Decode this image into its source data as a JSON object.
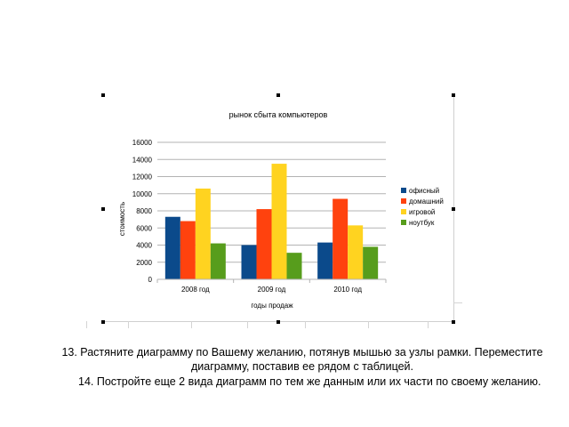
{
  "slide": {
    "instruction_13": "13. Растяните диаграмму по Вашему желанию, потянув мышью за узлы рамки. Переместите диаграмму, поставив ее рядом с таблицей.",
    "instruction_14": "14.   Постройте еще 2 вида диаграмм по тем же данным или их части по своему  желанию."
  },
  "chart_data": {
    "type": "bar",
    "title": "рынок сбыта компьютеров",
    "xlabel": "годы продаж",
    "ylabel": "стоимость",
    "categories": [
      "2008 год",
      "2009 год",
      "2010 год"
    ],
    "series": [
      {
        "name": "офисный",
        "values": [
          7300,
          4000,
          4300
        ],
        "color": "#0b4a8b"
      },
      {
        "name": "домашний",
        "values": [
          6800,
          8200,
          9400
        ],
        "color": "#ff420e"
      },
      {
        "name": "игровой",
        "values": [
          10600,
          13500,
          6300
        ],
        "color": "#ffd320"
      },
      {
        "name": "ноутбук",
        "values": [
          4200,
          3100,
          3800
        ],
        "color": "#579d1c"
      }
    ],
    "ylim": [
      0,
      16000
    ],
    "yticks": [
      "0",
      "2000",
      "4000",
      "6000",
      "8000",
      "10000",
      "12000",
      "14000",
      "16000"
    ],
    "grid": true,
    "legend": "right"
  }
}
